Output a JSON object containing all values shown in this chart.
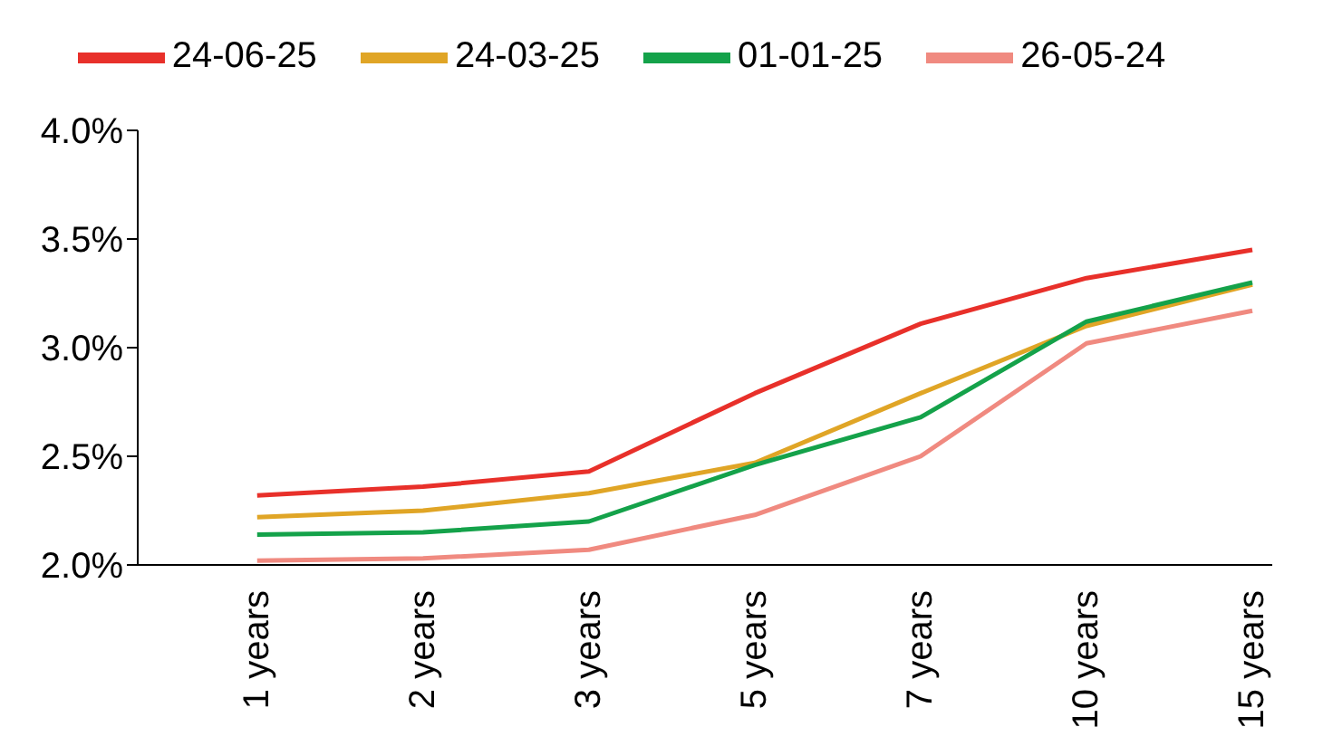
{
  "chart_data": {
    "type": "line",
    "categories": [
      "1 years",
      "2 years",
      "3 years",
      "5 years",
      "7 years",
      "10 years",
      "15 years"
    ],
    "series": [
      {
        "name": "24-06-25",
        "color": "#e8302a",
        "values": [
          2.32,
          2.36,
          2.43,
          2.79,
          3.11,
          3.32,
          3.45
        ]
      },
      {
        "name": "24-03-25",
        "color": "#e0a526",
        "values": [
          2.22,
          2.25,
          2.33,
          2.47,
          2.79,
          3.1,
          3.29
        ]
      },
      {
        "name": "01-01-25",
        "color": "#14a24a",
        "values": [
          2.14,
          2.15,
          2.2,
          2.46,
          2.68,
          3.12,
          3.3
        ]
      },
      {
        "name": "26-05-24",
        "color": "#f08a80",
        "values": [
          2.02,
          2.03,
          2.07,
          2.23,
          2.5,
          3.02,
          3.17
        ]
      }
    ],
    "ylim": [
      2.0,
      4.0
    ],
    "yticks": [
      {
        "value": 2.0,
        "label": "2.0%"
      },
      {
        "value": 2.5,
        "label": "2.5%"
      },
      {
        "value": 3.0,
        "label": "3.0%"
      },
      {
        "value": 3.5,
        "label": "3.5%"
      },
      {
        "value": 4.0,
        "label": "4.0%"
      }
    ],
    "grid": false,
    "legend": "top",
    "marker": "none",
    "line_style": "solid"
  }
}
